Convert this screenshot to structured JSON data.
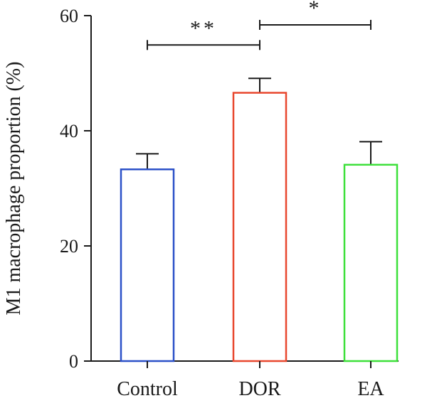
{
  "chart_data": {
    "type": "bar",
    "categories": [
      "Control",
      "DOR",
      "EA"
    ],
    "values": [
      33.3,
      46.6,
      34.1
    ],
    "errors": [
      2.7,
      2.5,
      4.0
    ],
    "bar_colors": [
      "#2b50c8",
      "#e8472e",
      "#3de03a"
    ],
    "xlabel": "",
    "ylabel": "M1 macrophage proportion (%)",
    "ylim": [
      0,
      60
    ],
    "yticks": [
      "0",
      "20",
      "40",
      "60"
    ],
    "grid": false,
    "significance": [
      {
        "from": 0,
        "to": 1,
        "label": "**",
        "y": 54.9
      },
      {
        "from": 1,
        "to": 2,
        "label": "*",
        "y": 58.4
      }
    ]
  }
}
